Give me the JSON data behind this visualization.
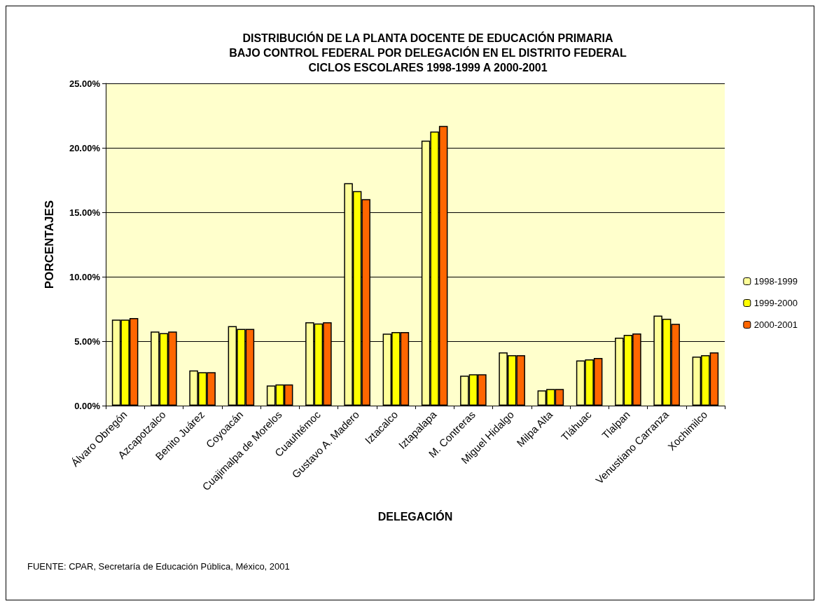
{
  "chart_data": {
    "type": "bar",
    "title": "DISTRIBUCIÓN DE LA PLANTA DOCENTE DE EDUCACIÓN PRIMARIA\nBAJO CONTROL FEDERAL POR DELEGACIÓN EN EL DISTRITO FEDERAL\nCICLOS ESCOLARES 1998-1999 A 2000-2001",
    "xlabel": "DELEGACIÓN",
    "ylabel": "PORCENTAJES",
    "categories": [
      "Álvaro Obregón",
      "Azcapotzalco",
      "Benito Juárez",
      "Coyoacán",
      "Cuajimalpa de Morelos",
      "Cuauhtémoc",
      "Gustavo A. Madero",
      "Iztacalco",
      "Iztapalapa",
      "M. Contreras",
      "Miguel Hidalgo",
      "Milpa Alta",
      "Tláhuac",
      "Tlalpan",
      "Venustiano Carranza",
      "Xochimilco"
    ],
    "series": [
      {
        "name": "1998-1999",
        "color": "#ffff99",
        "values": [
          6.67,
          5.75,
          2.73,
          6.17,
          1.56,
          6.47,
          17.26,
          5.59,
          20.56,
          2.32,
          4.13,
          1.18,
          3.5,
          5.27,
          6.98,
          3.8
        ]
      },
      {
        "name": "1999-2000",
        "color": "#ffff00",
        "values": [
          6.67,
          5.63,
          2.6,
          5.95,
          1.65,
          6.37,
          16.65,
          5.7,
          21.27,
          2.43,
          3.91,
          1.29,
          3.59,
          5.49,
          6.74,
          3.91
        ]
      },
      {
        "name": "2000-2001",
        "color": "#ff6600",
        "values": [
          6.8,
          5.75,
          2.6,
          5.95,
          1.65,
          6.47,
          16.02,
          5.7,
          21.7,
          2.43,
          3.91,
          1.29,
          3.7,
          5.6,
          6.34,
          4.13
        ]
      }
    ],
    "ylim": [
      0,
      25
    ],
    "yticks": [
      {
        "value": 0,
        "label": "0.00%"
      },
      {
        "value": 5,
        "label": "5.00%"
      },
      {
        "value": 10,
        "label": "10.00%"
      },
      {
        "value": 15,
        "label": "15.00%"
      },
      {
        "value": 20,
        "label": "20.00%"
      },
      {
        "value": 25,
        "label": "25.00%"
      }
    ],
    "grid": "y",
    "legend": "right",
    "annotations": [
      "FUENTE: CPAR, Secretaría de Educación Pública, México, 2001"
    ]
  }
}
